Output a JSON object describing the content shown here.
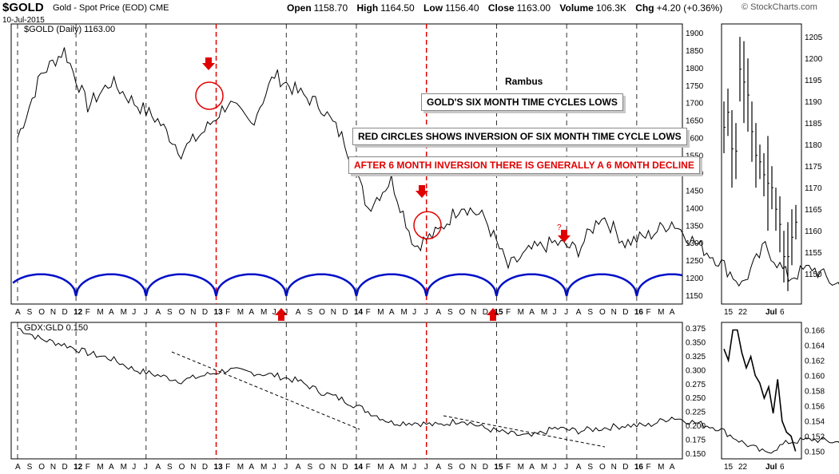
{
  "header": {
    "symbol": "$GOLD",
    "description": "Gold - Spot Price (EOD)",
    "exchange": "CME",
    "date": "10-Jul-2015",
    "open_label": "Open",
    "open": "1158.70",
    "high_label": "High",
    "high": "1164.50",
    "low_label": "Low",
    "low": "1156.40",
    "close_label": "Close",
    "close": "1163.00",
    "volume_label": "Volume",
    "volume": "106.3K",
    "chg_label": "Chg",
    "chg": "+4.20 (+0.36%)",
    "brand": "© StockCharts.com"
  },
  "annotations": {
    "author": "Rambus",
    "box1": "GOLD'S SIX MONTH TIME CYCLES LOWS",
    "box2": "RED CIRCLES SHOWS INVERSION OF SIX MONTH TIME CYCLE LOWS",
    "box3": "AFTER 6 MONTH INVERSION THERE IS GENERALLY A 6 MONTH DECLINE",
    "question": "?"
  },
  "colors": {
    "price": "#000000",
    "cycle": "#0010c8",
    "marker": "#e00000",
    "grid": "#000000"
  },
  "chart_data": [
    {
      "type": "line",
      "panel": "top",
      "title": "$GOLD (Daily) 1163.00",
      "ylim": [
        1125,
        1925
      ],
      "yticks": [
        1150,
        1200,
        1250,
        1300,
        1350,
        1400,
        1450,
        1500,
        1550,
        1600,
        1650,
        1700,
        1750,
        1800,
        1850,
        1900
      ],
      "x_labels": [
        "A",
        "S",
        "O",
        "N",
        "D",
        "12",
        "F",
        "M",
        "A",
        "M",
        "J",
        "J",
        "A",
        "S",
        "O",
        "N",
        "D",
        "13",
        "F",
        "M",
        "A",
        "M",
        "J",
        "J",
        "A",
        "S",
        "O",
        "N",
        "D",
        "14",
        "F",
        "M",
        "A",
        "M",
        "J",
        "J",
        "A",
        "S",
        "O",
        "N",
        "D",
        "15",
        "F",
        "M",
        "A",
        "M",
        "J",
        "J",
        "A",
        "S",
        "O",
        "N",
        "D",
        "16",
        "F",
        "M",
        "A"
      ],
      "series": [
        {
          "x": [
            0,
            2,
            4,
            6,
            8,
            10,
            12,
            14,
            16,
            18,
            20,
            22,
            24,
            26,
            28,
            30,
            32,
            34,
            36,
            38,
            40,
            42,
            44,
            46,
            48,
            50,
            52,
            54,
            56,
            58,
            60,
            62,
            64,
            66,
            68,
            70,
            72,
            74,
            75
          ],
          "values": [
            1600,
            1780,
            1850,
            1690,
            1760,
            1700,
            1650,
            1560,
            1620,
            1700,
            1640,
            1780,
            1730,
            1690,
            1590,
            1400,
            1480,
            1290,
            1330,
            1410,
            1370,
            1230,
            1280,
            1300,
            1280,
            1380,
            1300,
            1320,
            1360,
            1300,
            1250,
            1180,
            1290,
            1200,
            1230,
            1180,
            1210,
            1165,
            1163
          ]
        }
      ],
      "cycle_lows": [
        "2011-08",
        "2012-01",
        "2012-07",
        "2013-01",
        "2013-07",
        "2014-01",
        "2014-07",
        "2015-01",
        "2015-07"
      ],
      "inversion_markers": [
        "2013-01",
        "2014-07"
      ]
    },
    {
      "type": "line",
      "panel": "bottom",
      "title": "GDX:GLD 0.150",
      "ylim": [
        0.14,
        0.385
      ],
      "yticks": [
        0.15,
        0.175,
        0.2,
        0.225,
        0.25,
        0.275,
        0.3,
        0.325,
        0.35,
        0.375
      ],
      "x_labels": [
        "A",
        "S",
        "O",
        "N",
        "D",
        "12",
        "F",
        "M",
        "A",
        "M",
        "J",
        "J",
        "A",
        "S",
        "O",
        "N",
        "D",
        "13",
        "F",
        "M",
        "A",
        "M",
        "J",
        "J",
        "A",
        "S",
        "O",
        "N",
        "D",
        "14",
        "F",
        "M",
        "A",
        "M",
        "J",
        "J",
        "A",
        "S",
        "O",
        "N",
        "D",
        "15",
        "F",
        "M",
        "A",
        "M",
        "J",
        "J",
        "A",
        "S",
        "O",
        "N",
        "D",
        "16",
        "F",
        "M",
        "A"
      ],
      "series": [
        {
          "x": [
            0,
            2,
            4,
            6,
            8,
            10,
            12,
            14,
            16,
            18,
            20,
            22,
            24,
            26,
            28,
            30,
            32,
            34,
            36,
            38,
            40,
            42,
            44,
            46,
            48,
            50,
            52,
            54,
            56,
            58,
            60,
            62,
            64,
            66,
            68,
            70,
            72,
            74,
            75
          ],
          "values": [
            0.375,
            0.355,
            0.345,
            0.33,
            0.32,
            0.3,
            0.29,
            0.28,
            0.29,
            0.3,
            0.295,
            0.29,
            0.28,
            0.26,
            0.245,
            0.225,
            0.205,
            0.205,
            0.2,
            0.21,
            0.195,
            0.185,
            0.18,
            0.195,
            0.19,
            0.195,
            0.2,
            0.2,
            0.215,
            0.205,
            0.195,
            0.17,
            0.15,
            0.17,
            0.175,
            0.17,
            0.17,
            0.16,
            0.15
          ]
        }
      ]
    },
    {
      "type": "line",
      "panel": "side-top",
      "ylim": [
        1143,
        1208
      ],
      "yticks": [
        1150,
        1155,
        1160,
        1165,
        1170,
        1175,
        1180,
        1185,
        1190,
        1195,
        1200,
        1205
      ],
      "x_labels": [
        "15",
        "22",
        "Jul",
        "6"
      ]
    },
    {
      "type": "line",
      "panel": "side-bottom",
      "ylim": [
        0.149,
        0.167
      ],
      "yticks": [
        0.15,
        0.152,
        0.154,
        0.156,
        0.158,
        0.16,
        0.162,
        0.164,
        0.166
      ],
      "x_labels": [
        "15",
        "22",
        "Jul",
        "6"
      ],
      "series": [
        {
          "values": [
            0.1635,
            0.162,
            0.166,
            0.166,
            0.163,
            0.161,
            0.1625,
            0.16,
            0.159,
            0.157,
            0.1585,
            0.155,
            0.1595,
            0.154,
            0.1525,
            0.152,
            0.15
          ]
        }
      ]
    }
  ]
}
